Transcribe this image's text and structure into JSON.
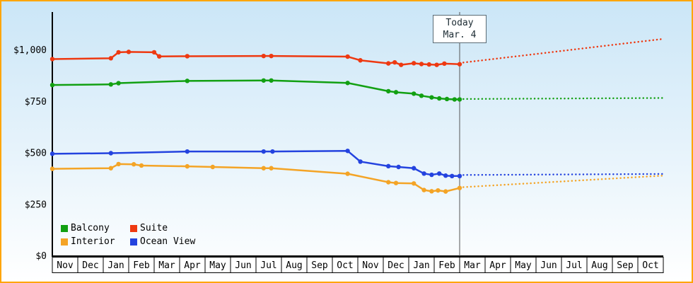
{
  "frame": {
    "border_color": "#FFA500",
    "background_top": "#CBE6F7",
    "background_bottom": "#FFFFFF",
    "axis_color": "#000000",
    "today_line_color": "#555555"
  },
  "chart_data": {
    "type": "line",
    "title": "",
    "ylim": [
      0,
      1186
    ],
    "grid": false,
    "legend_position": "bottom-left-inside",
    "yticks": [
      {
        "value": 0,
        "label": "$0"
      },
      {
        "value": 250,
        "label": "$250"
      },
      {
        "value": 500,
        "label": "$500"
      },
      {
        "value": 750,
        "label": "$750"
      },
      {
        "value": 1000,
        "label": "$1,000"
      }
    ],
    "x_months": [
      "Nov",
      "Dec",
      "Jan",
      "Feb",
      "Mar",
      "Apr",
      "May",
      "Jun",
      "Jul",
      "Aug",
      "Sep",
      "Oct",
      "Nov",
      "Dec",
      "Jan",
      "Feb",
      "Mar",
      "Apr",
      "May",
      "Jun",
      "Jul",
      "Aug",
      "Sep",
      "Oct"
    ],
    "today": {
      "month_index": 16,
      "line1": "Today",
      "line2": "Mar. 4"
    },
    "draw_order": [
      2,
      3,
      0,
      1
    ],
    "series": [
      {
        "name": "Balcony",
        "color": "#12A012",
        "history": [
          [
            0,
            831
          ],
          [
            2.3,
            834
          ],
          [
            2.6,
            840
          ],
          [
            5.3,
            851
          ],
          [
            8.3,
            853
          ],
          [
            8.6,
            853
          ],
          [
            11.6,
            841
          ],
          [
            13.2,
            801
          ],
          [
            13.5,
            796
          ],
          [
            14.2,
            789
          ],
          [
            14.5,
            779
          ],
          [
            14.9,
            771
          ],
          [
            15.2,
            766
          ],
          [
            15.5,
            763
          ],
          [
            15.8,
            761
          ],
          [
            16,
            761
          ]
        ],
        "forecast": [
          [
            16,
            763
          ],
          [
            24,
            768
          ]
        ]
      },
      {
        "name": "Suite",
        "color": "#EE3911",
        "history": [
          [
            0,
            957
          ],
          [
            2.3,
            961
          ],
          [
            2.6,
            990
          ],
          [
            3.0,
            992
          ],
          [
            4.0,
            990
          ],
          [
            4.2,
            970
          ],
          [
            5.3,
            971
          ],
          [
            8.3,
            972
          ],
          [
            8.6,
            972
          ],
          [
            11.6,
            969
          ],
          [
            12.1,
            951
          ],
          [
            13.2,
            936
          ],
          [
            13.45,
            941
          ],
          [
            13.7,
            929
          ],
          [
            14.2,
            937
          ],
          [
            14.5,
            933
          ],
          [
            14.8,
            931
          ],
          [
            15.1,
            929
          ],
          [
            15.4,
            935
          ],
          [
            16,
            932
          ]
        ],
        "forecast": [
          [
            16,
            938
          ],
          [
            24,
            1055
          ]
        ]
      },
      {
        "name": "Interior",
        "color": "#F4A426",
        "history": [
          [
            0,
            424
          ],
          [
            2.3,
            427
          ],
          [
            2.6,
            447
          ],
          [
            3.2,
            446
          ],
          [
            3.5,
            440
          ],
          [
            5.3,
            436
          ],
          [
            6.3,
            433
          ],
          [
            8.3,
            427
          ],
          [
            8.6,
            427
          ],
          [
            11.6,
            400
          ],
          [
            13.2,
            359
          ],
          [
            13.5,
            355
          ],
          [
            14.2,
            353
          ],
          [
            14.6,
            321
          ],
          [
            14.9,
            315
          ],
          [
            15.15,
            319
          ],
          [
            15.45,
            314
          ],
          [
            16,
            331
          ]
        ],
        "forecast": [
          [
            16,
            334
          ],
          [
            24,
            391
          ]
        ]
      },
      {
        "name": "Ocean View",
        "color": "#2443DF",
        "history": [
          [
            0,
            497
          ],
          [
            2.3,
            500
          ],
          [
            5.3,
            508
          ],
          [
            8.3,
            508
          ],
          [
            8.65,
            508
          ],
          [
            11.6,
            511
          ],
          [
            12.1,
            459
          ],
          [
            13.2,
            437
          ],
          [
            13.6,
            433
          ],
          [
            14.2,
            427
          ],
          [
            14.6,
            401
          ],
          [
            14.9,
            395
          ],
          [
            15.2,
            401
          ],
          [
            15.45,
            391
          ],
          [
            15.7,
            389
          ],
          [
            16,
            389
          ]
        ],
        "forecast": [
          [
            16,
            394
          ],
          [
            24,
            399
          ]
        ]
      }
    ]
  }
}
